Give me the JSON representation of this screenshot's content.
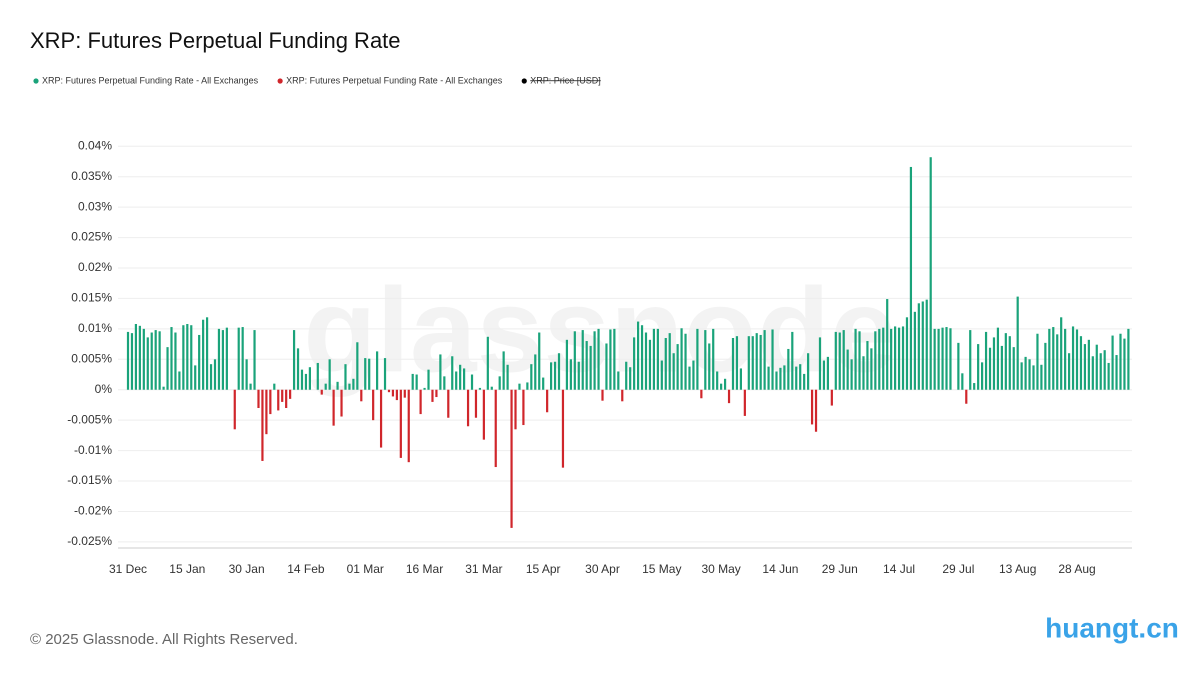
{
  "chart_data": {
    "type": "bar",
    "title": "XRP: Futures Perpetual Funding Rate",
    "watermark": "glassnode",
    "footer": "© 2025 Glassnode. All Rights Reserved.",
    "site_watermark": "huangt.cn",
    "ylim": [
      -0.026,
      0.043
    ],
    "yticks": [
      {
        "value": -0.025,
        "label": "-0.025%"
      },
      {
        "value": -0.02,
        "label": "-0.02%"
      },
      {
        "value": -0.015,
        "label": "-0.015%"
      },
      {
        "value": -0.01,
        "label": "-0.01%"
      },
      {
        "value": -0.005,
        "label": "-0.005%"
      },
      {
        "value": 0,
        "label": "0%"
      },
      {
        "value": 0.005,
        "label": "0.005%"
      },
      {
        "value": 0.01,
        "label": "0.01%"
      },
      {
        "value": 0.015,
        "label": "0.015%"
      },
      {
        "value": 0.02,
        "label": "0.02%"
      },
      {
        "value": 0.025,
        "label": "0.025%"
      },
      {
        "value": 0.03,
        "label": "0.03%"
      },
      {
        "value": 0.035,
        "label": "0.035%"
      },
      {
        "value": 0.04,
        "label": "0.04%"
      }
    ],
    "grid": true,
    "categories": [
      "31 Dec",
      null,
      null,
      null,
      null,
      null,
      null,
      null,
      null,
      null,
      null,
      null,
      null,
      null,
      null,
      "15 Jan",
      null,
      null,
      null,
      null,
      null,
      null,
      null,
      null,
      null,
      null,
      null,
      null,
      null,
      null,
      "30 Jan",
      null,
      null,
      null,
      null,
      null,
      null,
      null,
      null,
      null,
      null,
      null,
      null,
      null,
      null,
      "14 Feb",
      null,
      null,
      null,
      null,
      null,
      null,
      null,
      null,
      null,
      null,
      null,
      null,
      null,
      null,
      "01 Mar",
      null,
      null,
      null,
      null,
      null,
      null,
      null,
      null,
      null,
      null,
      null,
      null,
      null,
      null,
      "16 Mar",
      null,
      null,
      null,
      null,
      null,
      null,
      null,
      null,
      null,
      null,
      null,
      null,
      null,
      null,
      "31 Mar",
      null,
      null,
      null,
      null,
      null,
      null,
      null,
      null,
      null,
      null,
      null,
      null,
      null,
      null,
      "15 Apr",
      null,
      null,
      null,
      null,
      null,
      null,
      null,
      null,
      null,
      null,
      null,
      null,
      null,
      null,
      "30 Apr",
      null,
      null,
      null,
      null,
      null,
      null,
      null,
      null,
      null,
      null,
      null,
      null,
      null,
      null,
      "15 May",
      null,
      null,
      null,
      null,
      null,
      null,
      null,
      null,
      null,
      null,
      null,
      null,
      null,
      null,
      "30 May",
      null,
      null,
      null,
      null,
      null,
      null,
      null,
      null,
      null,
      null,
      null,
      null,
      null,
      null,
      "14 Jun",
      null,
      null,
      null,
      null,
      null,
      null,
      null,
      null,
      null,
      null,
      null,
      null,
      null,
      null,
      "29 Jun",
      null,
      null,
      null,
      null,
      null,
      null,
      null,
      null,
      null,
      null,
      null,
      null,
      null,
      null,
      "14 Jul",
      null,
      null,
      null,
      null,
      null,
      null,
      null,
      null,
      null,
      null,
      null,
      null,
      null,
      null,
      "29 Jul",
      null,
      null,
      null,
      null,
      null,
      null,
      null,
      null,
      null,
      null,
      null,
      null,
      null,
      null,
      "13 Aug",
      null,
      null,
      null,
      null,
      null,
      null,
      null,
      null,
      null,
      null,
      null,
      null,
      null,
      null,
      "28 Aug",
      null,
      null,
      null,
      null,
      null,
      null,
      null,
      null,
      null,
      null,
      null,
      null,
      null
    ],
    "series": [
      {
        "name": "XRP: Futures Perpetual Funding Rate - All Exchanges",
        "color": "#1aa37a",
        "values": [
          0.0095,
          0.0093,
          0.0108,
          0.0105,
          0.01,
          0.0086,
          0.0094,
          0.0098,
          0.0096,
          0.0005,
          0.007,
          0.0103,
          0.0094,
          0.003,
          0.0106,
          0.0108,
          0.0106,
          0.004,
          0.009,
          0.0115,
          0.0119,
          0.0042,
          0.005,
          0.01,
          0.0098,
          0.0102,
          0,
          null,
          0.0102,
          0.0103,
          0.005,
          0.001,
          0.0098,
          null,
          null,
          null,
          null,
          0.001,
          null,
          null,
          null,
          null,
          0.0098,
          0.0068,
          0.0033,
          0.0026,
          0.0037,
          0,
          0.0044,
          null,
          0.001,
          0.005,
          null,
          0.0013,
          null,
          0.0042,
          0.001,
          0.0018,
          0.0078,
          null,
          0.0052,
          0.0051,
          null,
          0.0063,
          null,
          0.0052,
          null,
          null,
          null,
          null,
          null,
          null,
          0.0026,
          0.0025,
          null,
          0.0003,
          0.0033,
          null,
          null,
          0.0058,
          0.0022,
          null,
          0.0055,
          0.003,
          0.0041,
          0.0035,
          null,
          0.0025,
          null,
          0.0003,
          null,
          0.0087,
          0.0005,
          null,
          0.0022,
          0.0063,
          0.0041,
          null,
          null,
          0.001,
          null,
          0.0012,
          0.0042,
          0.0058,
          0.0094,
          0.002,
          null,
          0.0045,
          0.0046,
          0.006,
          null,
          0.0082,
          0.005,
          0.0096,
          0.0046,
          0.0098,
          0.008,
          0.0072,
          0.0096,
          0.01,
          null,
          0.0076,
          0.0099,
          0.01,
          0.003,
          null,
          0.0046,
          0.0037,
          0.0086,
          0.0112,
          0.0106,
          0.0094,
          0.0082,
          0.01,
          0.01,
          0.0048,
          0.0085,
          0.0093,
          0.006,
          0.0075,
          0.0101,
          0.0092,
          0.0038,
          0.0048,
          0.01,
          null,
          0.0098,
          0.0076,
          0.01,
          0.003,
          0.001,
          0.0018,
          null,
          0.0085,
          0.0088,
          0.0035,
          null,
          0.0088,
          0.0088,
          0.0093,
          0.009,
          0.0098,
          0.0038,
          0.0099,
          0.003,
          0.0036,
          0.004,
          0.0067,
          0.0095,
          0.0038,
          0.0042,
          0.0026,
          0.006,
          null,
          null,
          0.0086,
          0.0048,
          0.0054,
          null,
          0.0095,
          0.0094,
          0.0098,
          0.0066,
          0.005,
          0.01,
          0.0096,
          0.0055,
          0.008,
          0.0068,
          0.0096,
          0.01,
          0.0102,
          0.0149,
          0.01,
          0.0104,
          0.0102,
          0.0104,
          0.0119,
          0.0366,
          0.0128,
          0.0142,
          0.0145,
          0.0148,
          0.0382,
          0.01,
          0.01,
          0.0102,
          0.0103,
          0.0101,
          0,
          0.0077,
          0.0027,
          null,
          0.0098,
          0.0011,
          0.0075,
          0.0045,
          0.0095,
          0.0069,
          0.0086,
          0.0102,
          0.0072,
          0.0093,
          0.0088,
          0.007,
          0.0153,
          0.0045,
          0.0054,
          0.005,
          0.004,
          0.0092,
          0.0041,
          0.0077,
          0.01,
          0.0103,
          0.0091,
          0.0119,
          0.01,
          0.006,
          0.0104,
          0.0099,
          0.0088,
          0.0075,
          0.0082,
          0.0055,
          0.0074,
          0.006,
          0.0065,
          0.0044,
          0.0089,
          0.0057,
          0.0092,
          0.0084,
          0.01
        ]
      },
      {
        "name": "XRP: Futures Perpetual Funding Rate - All Exchanges",
        "color": "#d0262b",
        "values": [
          null,
          null,
          null,
          null,
          null,
          null,
          null,
          null,
          null,
          null,
          null,
          null,
          null,
          null,
          null,
          null,
          null,
          null,
          null,
          null,
          null,
          null,
          null,
          null,
          null,
          null,
          null,
          -0.0065,
          null,
          null,
          null,
          null,
          null,
          -0.003,
          -0.0117,
          -0.0073,
          -0.004,
          null,
          -0.0034,
          -0.002,
          -0.003,
          -0.0015,
          null,
          null,
          null,
          null,
          null,
          null,
          null,
          -0.0008,
          null,
          null,
          -0.0059,
          null,
          -0.0044,
          null,
          null,
          null,
          null,
          -0.0019,
          null,
          null,
          -0.005,
          null,
          -0.0095,
          null,
          -0.0004,
          -0.0011,
          -0.0017,
          -0.0112,
          -0.0013,
          -0.0119,
          null,
          null,
          -0.004,
          null,
          null,
          -0.002,
          -0.0012,
          null,
          null,
          -0.0046,
          null,
          null,
          null,
          null,
          -0.006,
          null,
          -0.0046,
          null,
          -0.0082,
          null,
          null,
          -0.0127,
          null,
          null,
          null,
          -0.0227,
          -0.0065,
          null,
          -0.0058,
          null,
          null,
          null,
          null,
          null,
          -0.0037,
          null,
          null,
          null,
          -0.0128,
          null,
          null,
          null,
          null,
          null,
          null,
          null,
          null,
          null,
          -0.0018,
          null,
          null,
          null,
          null,
          -0.0019,
          null,
          null,
          null,
          null,
          null,
          null,
          null,
          null,
          null,
          null,
          null,
          null,
          null,
          null,
          null,
          null,
          null,
          null,
          null,
          -0.0014,
          null,
          null,
          null,
          null,
          null,
          null,
          -0.0022,
          null,
          null,
          null,
          -0.0043,
          null,
          null,
          null,
          null,
          null,
          null,
          null,
          null,
          null,
          null,
          null,
          null,
          null,
          null,
          null,
          null,
          -0.0057,
          -0.0069,
          null,
          null,
          null,
          -0.0026,
          null,
          null,
          null,
          null,
          null,
          null,
          null,
          null,
          null,
          null,
          null,
          null,
          null,
          null,
          null,
          null,
          null,
          null,
          null,
          null,
          null,
          null,
          null,
          null,
          null,
          null,
          null,
          null,
          null,
          null,
          null,
          null,
          null,
          -0.0023,
          null,
          null,
          null,
          null,
          null,
          null,
          null,
          null,
          null,
          null,
          null,
          null,
          null,
          null,
          null,
          null,
          null,
          null,
          null,
          null,
          null,
          null,
          null,
          null,
          null,
          null,
          null,
          null,
          null,
          null,
          null,
          null,
          null,
          null,
          null,
          null,
          null,
          null,
          null,
          null,
          null
        ]
      },
      {
        "name": "XRP: Price [USD]",
        "color": "#000000",
        "hidden": true
      }
    ]
  }
}
